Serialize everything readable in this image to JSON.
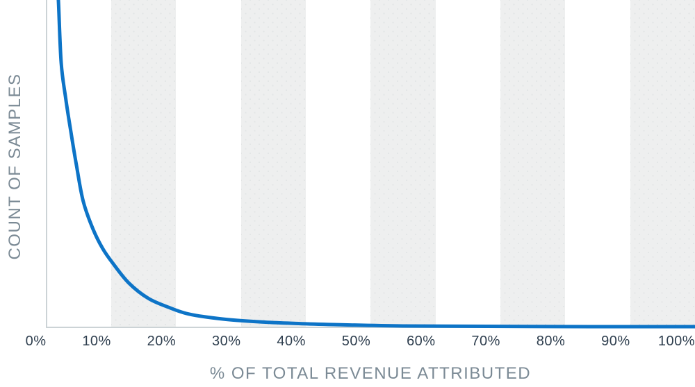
{
  "chart_data": {
    "type": "line",
    "xlabel": "% OF TOTAL REVENUE ATTRIBUTED",
    "ylabel": "COUNT OF SAMPLES",
    "xlim": [
      0,
      100
    ],
    "ylim": [
      0,
      1
    ],
    "grid": "off",
    "legend": "none",
    "x_ticks": [
      {
        "label": "0%",
        "value": 0
      },
      {
        "label": "10%",
        "value": 10
      },
      {
        "label": "20%",
        "value": 20
      },
      {
        "label": "30%",
        "value": 30
      },
      {
        "label": "40%",
        "value": 40
      },
      {
        "label": "50%",
        "value": 50
      },
      {
        "label": "60%",
        "value": 60
      },
      {
        "label": "70%",
        "value": 70
      },
      {
        "label": "80%",
        "value": 80
      },
      {
        "label": "90%",
        "value": 90
      },
      {
        "label": "100%",
        "value": 100
      }
    ],
    "y_axis_tick_labels": "none (unlabeled count axis)",
    "background_bands_x": [
      [
        10,
        20
      ],
      [
        30,
        40
      ],
      [
        50,
        60
      ],
      [
        70,
        80
      ],
      [
        90,
        100
      ]
    ],
    "series": [
      {
        "name": "count-of-samples",
        "shape": "long-tail hyperbolic decay, clipped at plot top near x=1.9%",
        "points": [
          [
            1.55,
            1.08
          ],
          [
            1.87,
            1.0
          ],
          [
            2.3,
            0.809
          ],
          [
            3.0,
            0.7
          ],
          [
            3.8,
            0.597
          ],
          [
            4.7,
            0.49
          ],
          [
            5.7,
            0.385
          ],
          [
            7.2,
            0.3
          ],
          [
            8.7,
            0.24
          ],
          [
            10.3,
            0.194
          ],
          [
            12.7,
            0.135
          ],
          [
            15.7,
            0.088
          ],
          [
            18.9,
            0.06
          ],
          [
            22.1,
            0.039
          ],
          [
            27.2,
            0.0244
          ],
          [
            32.8,
            0.0159
          ],
          [
            38.9,
            0.0106
          ],
          [
            44.3,
            0.0074
          ],
          [
            55,
            0.0032
          ],
          [
            68,
            0.0021
          ],
          [
            84,
            0.0011
          ],
          [
            100,
            0.0011
          ]
        ]
      }
    ]
  },
  "colors": {
    "curve": "#0d74c7",
    "band": "#eeefef",
    "band_dot": "#e2e5e6",
    "axis_line": "#ccd3d6",
    "tick_text": "#2e3e4e",
    "title_text": "#7b8a95",
    "background": "#ffffff"
  }
}
